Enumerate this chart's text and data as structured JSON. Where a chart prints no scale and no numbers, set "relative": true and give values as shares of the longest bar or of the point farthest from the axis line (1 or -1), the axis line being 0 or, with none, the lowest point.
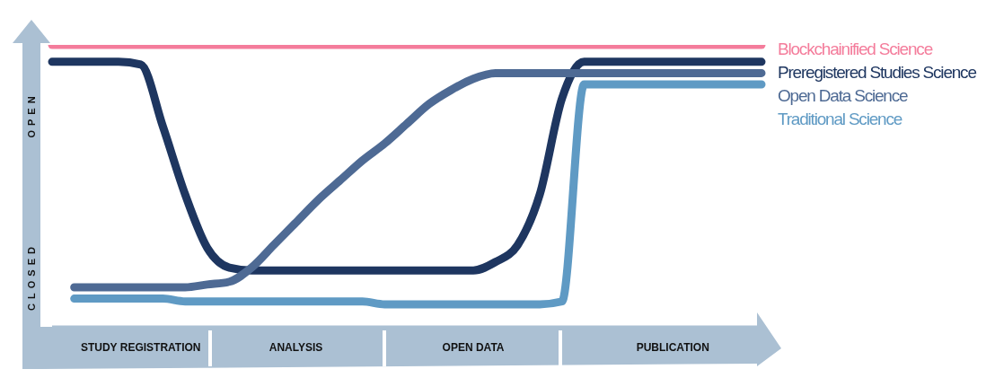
{
  "chart_data": {
    "type": "line",
    "relative": true,
    "categories": [
      null,
      null,
      null,
      null,
      "STUDY REGISTRATION",
      null,
      null,
      null,
      null,
      null,
      null,
      "ANALYSIS",
      null,
      null,
      null,
      null,
      null,
      null,
      null,
      "OPEN DATA",
      null,
      null,
      null,
      null,
      null,
      null,
      null,
      null,
      "PUBLICATION",
      null,
      null,
      null,
      null
    ],
    "series": [
      {
        "name": "Blockchainified Science",
        "color": "#f47c9b",
        "values": [
          1,
          1,
          1,
          1,
          1,
          1,
          1,
          1,
          1,
          1,
          1,
          1,
          1,
          1,
          1,
          1,
          1,
          1,
          1,
          1,
          1,
          1,
          1,
          1,
          1,
          1,
          1,
          1,
          1,
          1,
          1,
          1,
          1
        ]
      },
      {
        "name": "Preregistered Studies Science",
        "color": "#1e3660",
        "values": [
          0.94,
          0.94,
          0.94,
          0.94,
          0.93,
          0.71,
          0.47,
          0.28,
          0.21,
          0.2,
          0.2,
          0.2,
          0.2,
          0.2,
          0.2,
          0.2,
          0.2,
          0.2,
          0.2,
          0.2,
          0.23,
          0.29,
          0.47,
          0.81,
          0.94,
          0.94,
          0.94,
          0.94,
          0.94,
          0.94,
          0.94,
          0.94,
          0.94
        ]
      },
      {
        "name": "Open Data Science",
        "color": "#4e6a94",
        "values": [
          null,
          0.14,
          0.14,
          0.14,
          0.14,
          0.14,
          0.14,
          0.15,
          0.16,
          0.21,
          0.29,
          0.37,
          0.45,
          0.52,
          0.59,
          0.65,
          0.72,
          0.79,
          0.84,
          0.88,
          0.9,
          0.9,
          0.9,
          0.9,
          0.9,
          0.9,
          0.9,
          0.9,
          0.9,
          0.9,
          0.9,
          0.9,
          0.9
        ]
      },
      {
        "name": "Traditional Science",
        "color": "#5f9ac4",
        "values": [
          null,
          0.1,
          0.1,
          0.1,
          0.1,
          0.1,
          0.09,
          0.09,
          0.09,
          0.09,
          0.09,
          0.09,
          0.09,
          0.09,
          0.09,
          0.08,
          0.08,
          0.08,
          0.08,
          0.08,
          0.08,
          0.08,
          0.08,
          0.09,
          0.86,
          0.86,
          0.86,
          0.86,
          0.86,
          0.86,
          0.86,
          0.86,
          0.86
        ]
      }
    ],
    "annotations": [
      "OPEN",
      "CLOSED"
    ],
    "legend": "right",
    "grid": false,
    "marker": "none",
    "line_style": "solid"
  }
}
